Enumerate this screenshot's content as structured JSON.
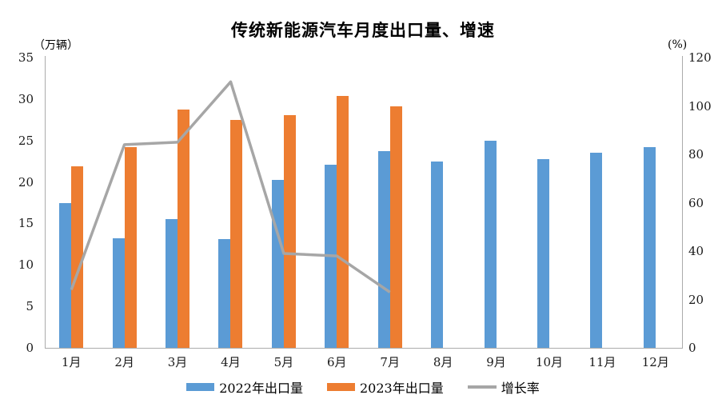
{
  "chart_data": {
    "type": "bar",
    "subtype": "grouped-bars-with-line",
    "title": "传统新能源汽车月度出口量、增速",
    "left_axis": {
      "unit": "（万辆）",
      "min": 0,
      "max": 35,
      "ticks": [
        0,
        5,
        10,
        15,
        20,
        25,
        30,
        35
      ]
    },
    "right_axis": {
      "unit": "(%)",
      "min": 0,
      "max": 120,
      "ticks": [
        0,
        20,
        40,
        60,
        80,
        100,
        120
      ]
    },
    "categories": [
      "1月",
      "2月",
      "3月",
      "4月",
      "5月",
      "6月",
      "7月",
      "8月",
      "9月",
      "10月",
      "11月",
      "12月"
    ],
    "series": [
      {
        "name": "2022年出口量",
        "type": "bar",
        "axis": "left",
        "color": "#5b9bd5",
        "values": [
          17.5,
          13.2,
          15.5,
          13.1,
          20.2,
          22.1,
          23.7,
          22.5,
          25.0,
          22.8,
          23.5,
          24.2
        ]
      },
      {
        "name": "2023年出口量",
        "type": "bar",
        "axis": "left",
        "color": "#ed7d31",
        "values": [
          21.9,
          24.2,
          28.7,
          27.5,
          28.1,
          30.4,
          29.1,
          null,
          null,
          null,
          null,
          null
        ]
      },
      {
        "name": "增长率",
        "type": "line",
        "axis": "right",
        "color": "#a6a6a6",
        "values": [
          24,
          84,
          85,
          110,
          39,
          38,
          23,
          null,
          null,
          null,
          null,
          null
        ]
      }
    ],
    "legend_position": "bottom",
    "grid": false,
    "axis_line_color": "#ababab",
    "text_color": "#1a1a1a"
  }
}
